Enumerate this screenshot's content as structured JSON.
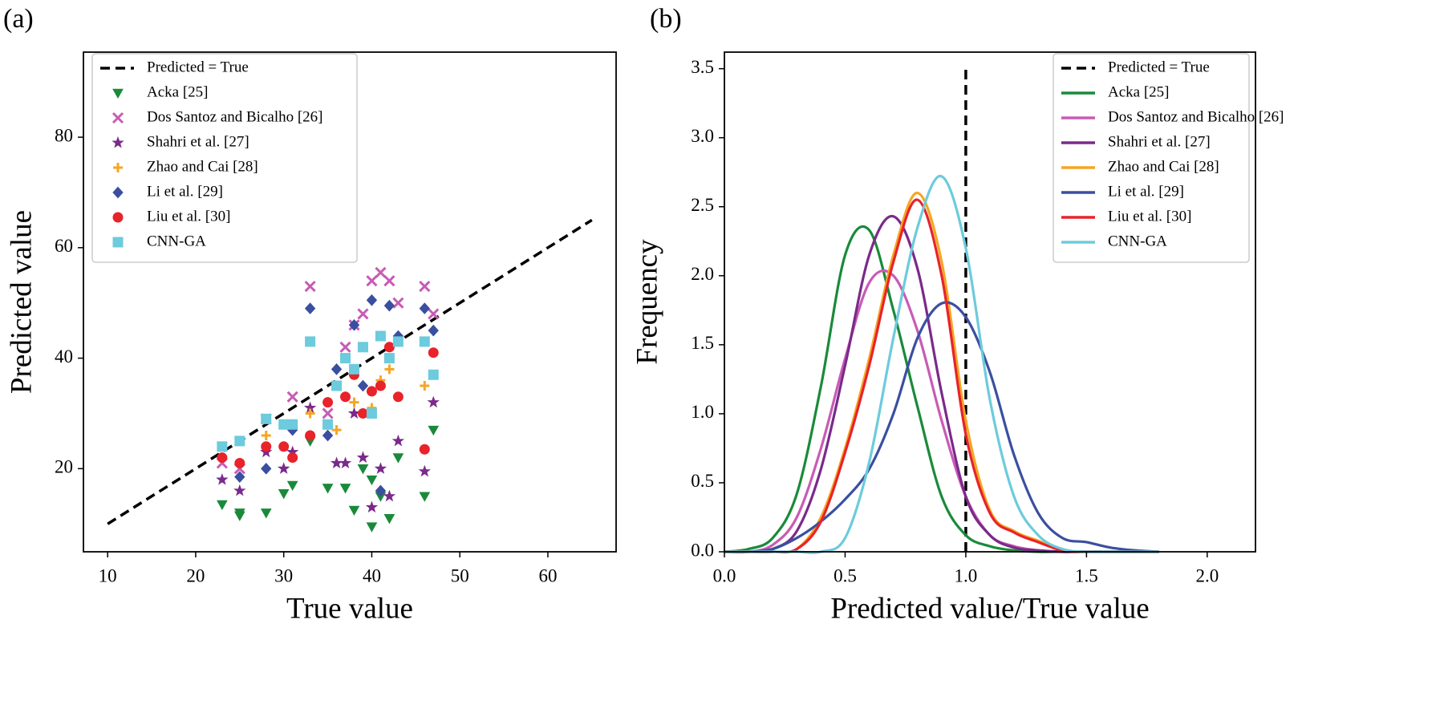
{
  "chart_data": [
    {
      "type": "scatter",
      "label": "(a)",
      "x_label": "True value",
      "y_label": "Predicted value",
      "xlim": [
        7.25,
        67.75
      ],
      "ylim": [
        4.95,
        95.4
      ],
      "xticks": [
        10,
        20,
        30,
        40,
        50,
        60
      ],
      "yticks": [
        20,
        40,
        60,
        80
      ],
      "legend": "upper left",
      "series": [
        {
          "name": "Predicted = True",
          "color": "#000000",
          "style": "dashed",
          "x": [
            10,
            65
          ],
          "values": [
            10,
            65
          ]
        },
        {
          "name": "Acka [25]",
          "color": "#1a8a3a",
          "marker": "v",
          "x": [
            23,
            25,
            25,
            28,
            30,
            31,
            33,
            35,
            37,
            38,
            39,
            40,
            40,
            41,
            42,
            43,
            46,
            47
          ],
          "values": [
            13.5,
            12,
            11.5,
            12,
            15.5,
            17,
            25,
            16.5,
            16.5,
            12.5,
            20,
            9.5,
            18,
            15,
            11,
            22,
            15,
            27
          ]
        },
        {
          "name": "Dos Santoz and Bicalho [26]",
          "color": "#c85bb5",
          "marker": "x",
          "x": [
            23,
            25,
            28,
            31,
            33,
            35,
            37,
            38,
            39,
            40,
            41,
            42,
            43,
            46,
            47
          ],
          "values": [
            21,
            20,
            29,
            33,
            53,
            30,
            42,
            46,
            48,
            54,
            55.5,
            54,
            50,
            53,
            48
          ]
        },
        {
          "name": "Shahri et al. [27]",
          "color": "#7a2a8a",
          "marker": "*",
          "x": [
            23,
            25,
            28,
            30,
            31,
            33,
            36,
            37,
            38,
            39,
            40,
            41,
            42,
            43,
            46,
            47
          ],
          "values": [
            18,
            16,
            23,
            20,
            23,
            31,
            21,
            21,
            30,
            22,
            13,
            20,
            15,
            25,
            19.5,
            32
          ]
        },
        {
          "name": "Zhao and Cai [28]",
          "color": "#f5a623",
          "marker": "+",
          "x": [
            25,
            28,
            30,
            33,
            36,
            38,
            40,
            41,
            42,
            46
          ],
          "values": [
            21,
            26,
            24,
            30,
            27,
            32,
            31,
            36,
            38,
            35
          ]
        },
        {
          "name": "Li et al. [29]",
          "color": "#3a4fa0",
          "marker": "D",
          "x": [
            25,
            28,
            31,
            33,
            35,
            36,
            38,
            39,
            40,
            41,
            42,
            43,
            46,
            47
          ],
          "values": [
            18.5,
            20,
            27,
            49,
            26,
            38,
            46,
            35,
            50.5,
            16,
            49.5,
            44,
            49,
            45
          ]
        },
        {
          "name": "Liu et al. [30]",
          "color": "#e8232a",
          "marker": "o",
          "x": [
            23,
            25,
            28,
            30,
            31,
            33,
            35,
            37,
            38,
            39,
            40,
            41,
            42,
            43,
            46,
            47
          ],
          "values": [
            22,
            21,
            24,
            24,
            22,
            26,
            32,
            33,
            37,
            30,
            34,
            35,
            42,
            33,
            23.5,
            41
          ]
        },
        {
          "name": "CNN-GA",
          "color": "#6ccbdc",
          "marker": "s",
          "x": [
            23,
            25,
            28,
            30,
            31,
            33,
            35,
            36,
            37,
            38,
            39,
            40,
            41,
            42,
            43,
            46,
            47
          ],
          "values": [
            24,
            25,
            29,
            28,
            28,
            43,
            28,
            35,
            40,
            38,
            42,
            30,
            44,
            40,
            43,
            43,
            37
          ]
        }
      ]
    },
    {
      "type": "line",
      "label": "(b)",
      "x_label": "Predicted value/True value",
      "y_label": "Frequency",
      "xlim": [
        0,
        2.2
      ],
      "ylim": [
        0,
        3.62
      ],
      "xticks": [
        {
          "value": 0,
          "label": "0.0"
        },
        0.5,
        {
          "value": 1,
          "label": "1.0"
        },
        1.5,
        {
          "value": 2,
          "label": "2.0"
        }
      ],
      "yticks": [
        {
          "value": 0,
          "label": "0.0"
        },
        0.5,
        {
          "value": 1,
          "label": "1.0"
        },
        1.5,
        {
          "value": 2,
          "label": "2.0"
        },
        2.5,
        {
          "value": 3,
          "label": "3.0"
        },
        3.5
      ],
      "legend": "upper right",
      "x": [
        0,
        0.1,
        0.2,
        0.3,
        0.4,
        0.5,
        0.6,
        0.7,
        0.8,
        0.9,
        1,
        1.1,
        1.2,
        1.3,
        1.4,
        1.5,
        1.6,
        1.7,
        1.8
      ],
      "series": [
        {
          "name": "Predicted = True",
          "color": "#000000",
          "style": "dashed",
          "x": [
            1,
            1
          ],
          "values": [
            0,
            3.5
          ]
        },
        {
          "name": "Acka [25]",
          "color": "#1a8a3a",
          "values": [
            0,
            0.02,
            0.1,
            0.42,
            1.2,
            2.15,
            2.33,
            1.75,
            1.05,
            0.4,
            0.12,
            0.04,
            0.01,
            0,
            0,
            0,
            0,
            0,
            0
          ]
        },
        {
          "name": "Dos Santoz and Bicalho [26]",
          "color": "#c85bb5",
          "values": [
            0,
            0,
            0.05,
            0.25,
            0.75,
            1.4,
            1.95,
            2.0,
            1.6,
            0.95,
            0.4,
            0.12,
            0.04,
            0.01,
            0,
            0,
            0,
            0,
            0
          ]
        },
        {
          "name": "Shahri et al. [27]",
          "color": "#7a2a8a",
          "values": [
            0,
            0,
            0.02,
            0.15,
            0.6,
            1.35,
            2.15,
            2.43,
            2.05,
            1.15,
            0.4,
            0.12,
            0.03,
            0.01,
            0,
            0,
            0,
            0,
            0
          ]
        },
        {
          "name": "Zhao and Cai [28]",
          "color": "#f5a623",
          "values": [
            0,
            0,
            0,
            0.02,
            0.25,
            0.75,
            1.4,
            2.15,
            2.6,
            2.1,
            0.95,
            0.3,
            0.15,
            0.08,
            0.01,
            0,
            0,
            0,
            0
          ]
        },
        {
          "name": "Li et al. [29]",
          "color": "#3a4fa0",
          "values": [
            0,
            0,
            0.02,
            0.1,
            0.22,
            0.38,
            0.6,
            1.0,
            1.55,
            1.8,
            1.7,
            1.3,
            0.7,
            0.28,
            0.1,
            0.07,
            0.03,
            0.01,
            0
          ]
        },
        {
          "name": "Liu et al. [30]",
          "color": "#e8232a",
          "values": [
            0,
            0,
            0,
            0.02,
            0.22,
            0.72,
            1.35,
            2.1,
            2.55,
            2.0,
            0.85,
            0.28,
            0.14,
            0.07,
            0.01,
            0,
            0,
            0,
            0
          ]
        },
        {
          "name": "CNN-GA",
          "color": "#6ccbdc",
          "values": [
            0,
            0,
            0,
            0,
            0,
            0.1,
            0.65,
            1.55,
            2.35,
            2.72,
            2.2,
            1.1,
            0.4,
            0.12,
            0.02,
            0,
            0,
            0,
            0
          ]
        }
      ]
    }
  ]
}
